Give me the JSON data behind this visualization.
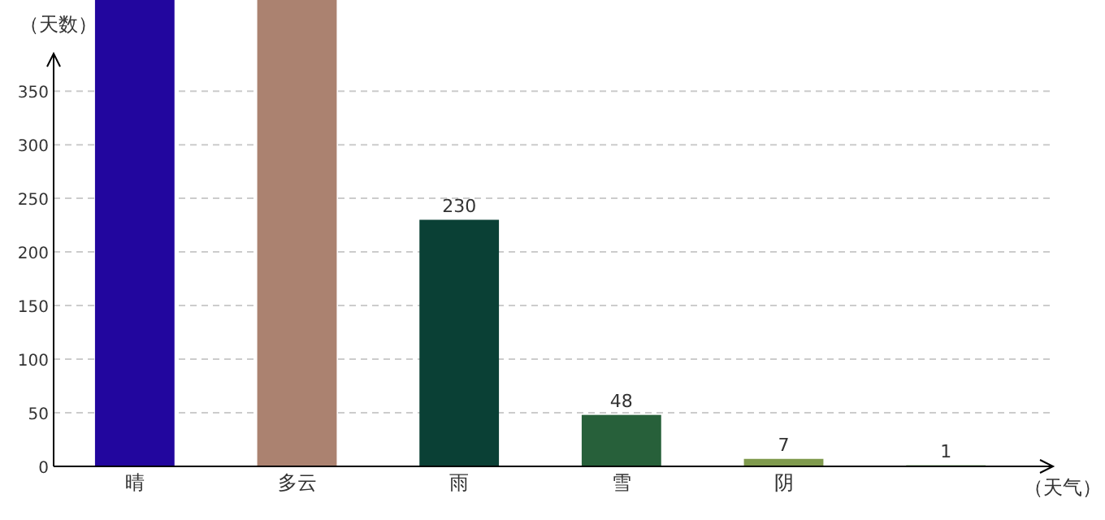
{
  "chart_data": {
    "type": "bar",
    "ylabel": "（天数）",
    "xlabel": "（天气）",
    "categories": [
      "晴",
      "多云",
      "雨",
      "雪",
      "阴",
      null
    ],
    "values": [
      435,
      435,
      230,
      48,
      7,
      1
    ],
    "colors": [
      "#22069e",
      "#ab8270",
      "#0a4035",
      "#27603a",
      "#7f9a4d",
      "#3d8a2e"
    ],
    "value_labels": [
      null,
      null,
      "230",
      "48",
      "7",
      "1"
    ],
    "ylim": [
      0,
      435
    ],
    "yticks": [
      0,
      50,
      100,
      150,
      200,
      250,
      300,
      350
    ],
    "grid": "y"
  }
}
